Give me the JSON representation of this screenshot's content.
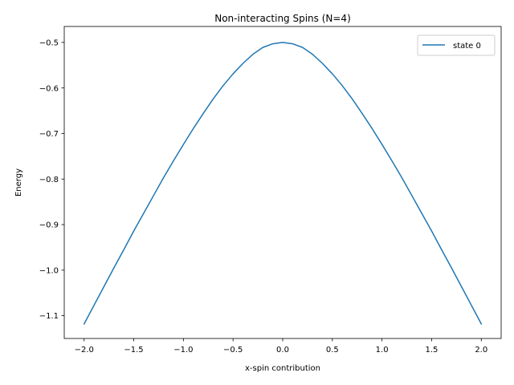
{
  "chart_data": {
    "type": "line",
    "title": "Non-interacting Spins (N=4)",
    "xlabel": "x-spin contribution",
    "ylabel": "Energy",
    "xlim": [
      -2.2,
      2.2
    ],
    "ylim": [
      -1.15,
      -0.465
    ],
    "xticks": [
      -2.0,
      -1.5,
      -1.0,
      -0.5,
      0.0,
      0.5,
      1.0,
      1.5,
      2.0
    ],
    "xtick_labels": [
      "−2.0",
      "−1.5",
      "−1.0",
      "−0.5",
      "0.0",
      "0.5",
      "1.0",
      "1.5",
      "2.0"
    ],
    "yticks": [
      -1.1,
      -1.0,
      -0.9,
      -0.8,
      -0.7,
      -0.6,
      -0.5
    ],
    "ytick_labels": [
      "−1.1",
      "−1.0",
      "−0.9",
      "−0.8",
      "−0.7",
      "−0.6",
      "−0.5"
    ],
    "grid": false,
    "legend_position": "top-right",
    "series": [
      {
        "name": "state 0",
        "color": "#1f77b4",
        "x": [
          -2.0,
          -1.9,
          -1.8,
          -1.7,
          -1.6,
          -1.5,
          -1.4,
          -1.3,
          -1.2,
          -1.1,
          -1.0,
          -0.9,
          -0.8,
          -0.7,
          -0.6,
          -0.5,
          -0.4,
          -0.3,
          -0.2,
          -0.1,
          0.0,
          0.1,
          0.2,
          0.3,
          0.4,
          0.5,
          0.6,
          0.7,
          0.8,
          0.9,
          1.0,
          1.1,
          1.2,
          1.3,
          1.4,
          1.5,
          1.6,
          1.7,
          1.8,
          1.9,
          2.0
        ],
        "values": [
          -1.118,
          -1.077,
          -1.036,
          -0.995,
          -0.955,
          -0.914,
          -0.875,
          -0.836,
          -0.797,
          -0.76,
          -0.724,
          -0.689,
          -0.656,
          -0.624,
          -0.595,
          -0.569,
          -0.546,
          -0.526,
          -0.511,
          -0.503,
          -0.5,
          -0.503,
          -0.511,
          -0.526,
          -0.546,
          -0.569,
          -0.595,
          -0.624,
          -0.656,
          -0.689,
          -0.724,
          -0.76,
          -0.797,
          -0.836,
          -0.875,
          -0.914,
          -0.955,
          -0.995,
          -1.036,
          -1.077,
          -1.118
        ]
      }
    ]
  }
}
